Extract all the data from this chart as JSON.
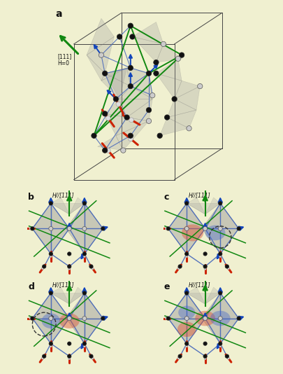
{
  "bg_color": "#f0f0d0",
  "title_a": "a",
  "title_b": "b",
  "title_c": "c",
  "title_d": "d",
  "title_e": "e",
  "label_111_H0": "[111]\nH=0",
  "label_H111": "H//[111]",
  "green_color": "#118811",
  "blue_arrow_color": "#1144bb",
  "red_color": "#cc2200",
  "blue_line_color": "#4466bb",
  "gray_face_color": "#aaaaaa",
  "black_node_color": "#111111",
  "white_node_color": "#cccccc",
  "red_blob_color": "#dd5533",
  "blue_blob_color": "#4466cc",
  "panel_border": "#bbbbaa"
}
